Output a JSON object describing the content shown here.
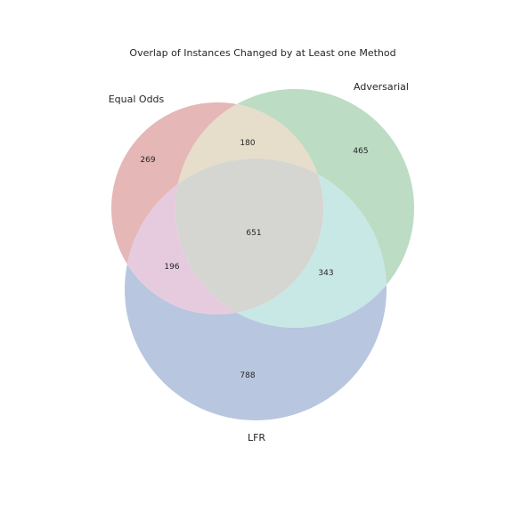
{
  "diagram": {
    "type": "venn3",
    "title": "Overlap of Instances Changed by at Least one Method",
    "sets": [
      {
        "id": "A",
        "label": "Equal Odds",
        "color": "#d46a6a"
      },
      {
        "id": "B",
        "label": "Adversarial",
        "color": "#6ab56e"
      },
      {
        "id": "C",
        "label": "LFR",
        "color": "#6f8fc6"
      }
    ],
    "regions": {
      "A_only": "269",
      "B_only": "465",
      "C_only": "788",
      "AB_only": "180",
      "AC_only": "196",
      "BC_only": "343",
      "ABC": "651"
    }
  }
}
